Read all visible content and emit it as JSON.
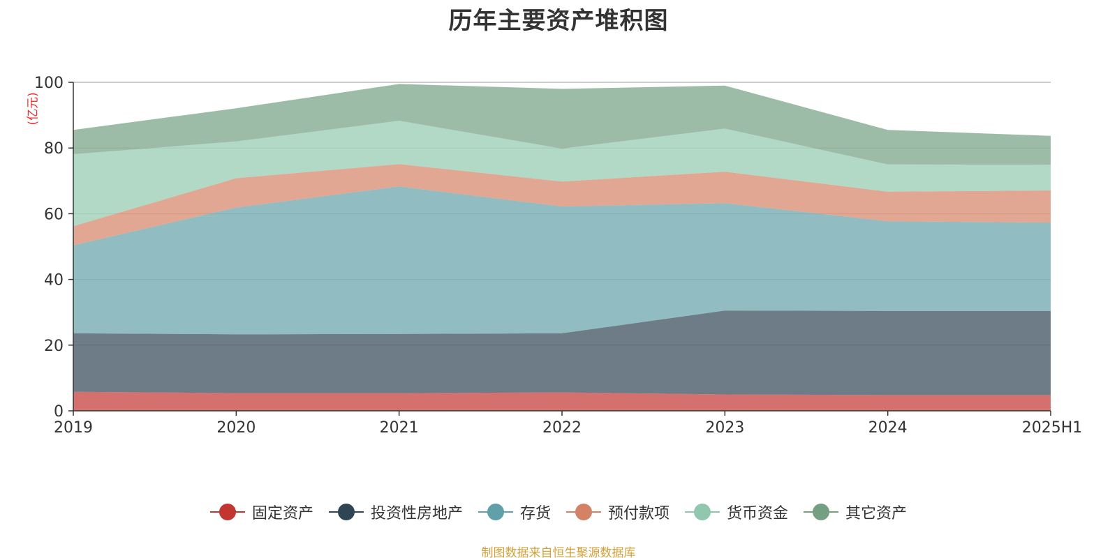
{
  "chart_data": {
    "type": "area",
    "stacked": true,
    "title": "历年主要资产堆积图",
    "unit": "(亿元)",
    "categories": [
      "2019",
      "2020",
      "2021",
      "2022",
      "2023",
      "2024",
      "2025H1"
    ],
    "ylim": [
      0,
      100
    ],
    "yticks": [
      0,
      20,
      40,
      60,
      80,
      100
    ],
    "grid": true,
    "legend_position": "bottom",
    "series": [
      {
        "name": "固定资产",
        "color": "#c23531",
        "values": [
          5.8,
          5.4,
          5.4,
          5.6,
          5.0,
          4.8,
          4.8
        ]
      },
      {
        "name": "投资性房地产",
        "color": "#2f4554",
        "values": [
          17.8,
          17.9,
          18.0,
          18.0,
          25.5,
          25.6,
          25.6
        ]
      },
      {
        "name": "存货",
        "color": "#61a0a8",
        "values": [
          26.8,
          38.6,
          44.9,
          38.6,
          32.7,
          27.3,
          26.9
        ]
      },
      {
        "name": "预付款项",
        "color": "#d48265",
        "values": [
          5.8,
          8.9,
          6.8,
          7.6,
          9.6,
          9.0,
          9.8
        ]
      },
      {
        "name": "货币资金",
        "color": "#91c7ae",
        "values": [
          21.9,
          11.2,
          13.2,
          10.0,
          13.1,
          8.3,
          7.8
        ]
      },
      {
        "name": "其它资产",
        "color": "#749f83",
        "values": [
          7.4,
          10.1,
          11.2,
          18.2,
          13.1,
          10.5,
          8.8
        ]
      }
    ]
  },
  "source_note": "制图数据来自恒生聚源数据库"
}
